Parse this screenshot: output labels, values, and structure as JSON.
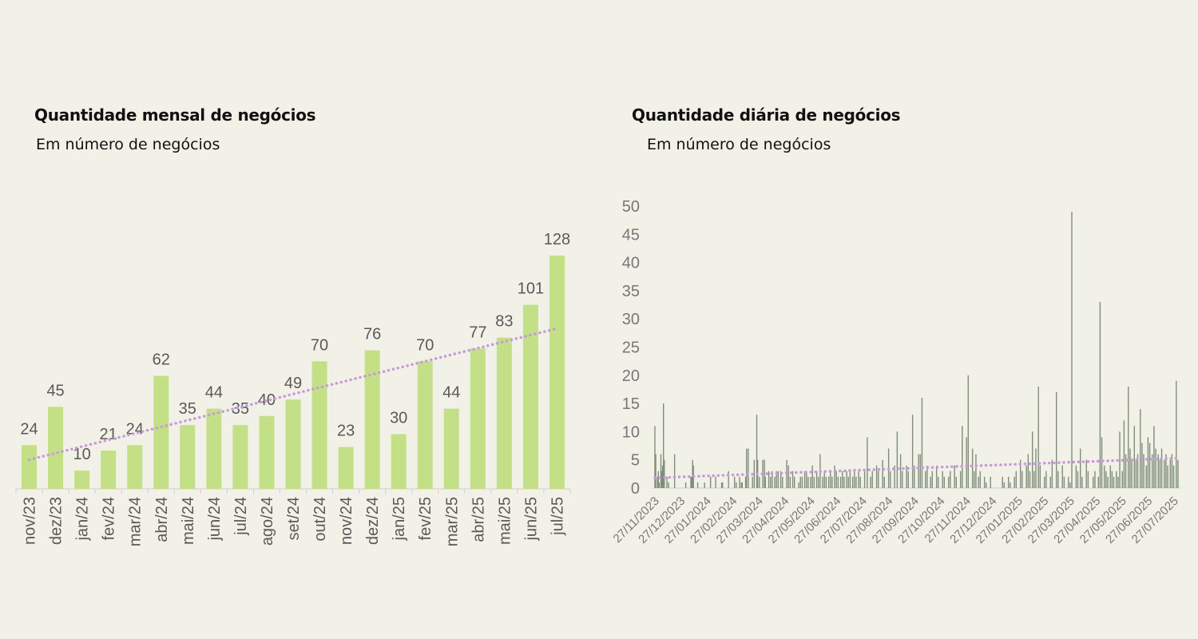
{
  "left_panel": {
    "title": "Quantidade mensal de negócios",
    "subtitle": "Em número de negócios"
  },
  "right_panel": {
    "title": "Quantidade diária de negócios",
    "subtitle": "Em número de negócios"
  },
  "colors": {
    "background": "#f2f1e8",
    "bar_monthly": "#c3e087",
    "bar_daily": "#7f8e7a",
    "trendline": "#c79ad9",
    "text": "#595959"
  },
  "chart_data": [
    {
      "type": "bar",
      "title": "Quantidade mensal de negócios",
      "subtitle": "Em número de negócios",
      "categories": [
        "nov/23",
        "dez/23",
        "jan/24",
        "fev/24",
        "mar/24",
        "abr/24",
        "mai/24",
        "jun/24",
        "jul/24",
        "ago/24",
        "set/24",
        "out/24",
        "nov/24",
        "dez/24",
        "jan/25",
        "fev/25",
        "mar/25",
        "abr/25",
        "mai/25",
        "jun/25",
        "jul/25"
      ],
      "values": [
        24,
        45,
        10,
        21,
        24,
        62,
        35,
        44,
        35,
        40,
        49,
        70,
        23,
        76,
        30,
        70,
        44,
        77,
        83,
        101,
        128
      ],
      "data_labels": true,
      "trendline": {
        "type": "linear",
        "style": "dotted",
        "start": 16,
        "end": 88
      },
      "ylim": [
        0,
        140
      ],
      "grid": false
    },
    {
      "type": "bar",
      "title": "Quantidade diária de negócios",
      "subtitle": "Em número de negócios",
      "x_start": "2023-11-27",
      "x_end": "2025-07-31",
      "x_tick_labels": [
        "27/11/2023",
        "27/12/2023",
        "27/01/2024",
        "27/02/2024",
        "27/03/2024",
        "27/04/2024",
        "27/05/2024",
        "27/06/2024",
        "27/07/2024",
        "27/08/2024",
        "27/09/2024",
        "27/10/2024",
        "27/11/2024",
        "27/12/2024",
        "27/01/2025",
        "27/02/2025",
        "27/03/2025",
        "27/04/2025",
        "27/05/2025",
        "27/06/2025",
        "27/07/2025"
      ],
      "y_ticks": [
        0,
        5,
        10,
        15,
        20,
        25,
        30,
        35,
        40,
        45,
        50
      ],
      "ylim": [
        0,
        50
      ],
      "grid": false,
      "trendline": {
        "type": "linear",
        "style": "dotted",
        "start": 1.8,
        "end": 5.3
      },
      "series": [
        {
          "points": [
            [
              "2023-11-27",
              11
            ],
            [
              "2023-11-28",
              6
            ],
            [
              "2023-11-30",
              2
            ],
            [
              "2023-12-01",
              3
            ],
            [
              "2023-12-02",
              1
            ],
            [
              "2023-12-04",
              6
            ],
            [
              "2023-12-05",
              3
            ],
            [
              "2023-12-06",
              4
            ],
            [
              "2023-12-07",
              15
            ],
            [
              "2023-12-08",
              5
            ],
            [
              "2023-12-11",
              2
            ],
            [
              "2023-12-13",
              1
            ],
            [
              "2023-12-20",
              6
            ],
            [
              "2024-01-02",
              1
            ],
            [
              "2024-01-08",
              2
            ],
            [
              "2024-01-09",
              2
            ],
            [
              "2024-01-10",
              5
            ],
            [
              "2024-01-11",
              4
            ],
            [
              "2024-01-16",
              1
            ],
            [
              "2024-01-24",
              1
            ],
            [
              "2024-01-31",
              2
            ],
            [
              "2024-02-06",
              2
            ],
            [
              "2024-02-13",
              1
            ],
            [
              "2024-02-14",
              1
            ],
            [
              "2024-02-21",
              3
            ],
            [
              "2024-02-28",
              2
            ],
            [
              "2024-03-01",
              1
            ],
            [
              "2024-03-05",
              2
            ],
            [
              "2024-03-07",
              1
            ],
            [
              "2024-03-08",
              1
            ],
            [
              "2024-03-12",
              2
            ],
            [
              "2024-03-13",
              7
            ],
            [
              "2024-03-15",
              7
            ],
            [
              "2024-03-20",
              2
            ],
            [
              "2024-03-22",
              5
            ],
            [
              "2024-03-25",
              13
            ],
            [
              "2024-03-26",
              5
            ],
            [
              "2024-03-28",
              2
            ],
            [
              "2024-04-01",
              5
            ],
            [
              "2024-04-03",
              5
            ],
            [
              "2024-04-04",
              2
            ],
            [
              "2024-04-08",
              3
            ],
            [
              "2024-04-10",
              2
            ],
            [
              "2024-04-12",
              3
            ],
            [
              "2024-04-15",
              2
            ],
            [
              "2024-04-17",
              3
            ],
            [
              "2024-04-19",
              3
            ],
            [
              "2024-04-22",
              3
            ],
            [
              "2024-04-24",
              2
            ],
            [
              "2024-04-29",
              5
            ],
            [
              "2024-05-01",
              4
            ],
            [
              "2024-05-03",
              2
            ],
            [
              "2024-05-06",
              3
            ],
            [
              "2024-05-08",
              2
            ],
            [
              "2024-05-13",
              1
            ],
            [
              "2024-05-15",
              2
            ],
            [
              "2024-05-17",
              2
            ],
            [
              "2024-05-20",
              3
            ],
            [
              "2024-05-22",
              3
            ],
            [
              "2024-05-24",
              2
            ],
            [
              "2024-05-27",
              2
            ],
            [
              "2024-05-29",
              4
            ],
            [
              "2024-05-31",
              2
            ],
            [
              "2024-06-03",
              3
            ],
            [
              "2024-06-05",
              2
            ],
            [
              "2024-06-07",
              6
            ],
            [
              "2024-06-10",
              2
            ],
            [
              "2024-06-12",
              3
            ],
            [
              "2024-06-14",
              2
            ],
            [
              "2024-06-17",
              2
            ],
            [
              "2024-06-19",
              3
            ],
            [
              "2024-06-21",
              2
            ],
            [
              "2024-06-24",
              4
            ],
            [
              "2024-06-26",
              3
            ],
            [
              "2024-06-28",
              2
            ],
            [
              "2024-07-01",
              2
            ],
            [
              "2024-07-03",
              3
            ],
            [
              "2024-07-05",
              2
            ],
            [
              "2024-07-08",
              3
            ],
            [
              "2024-07-10",
              2
            ],
            [
              "2024-07-12",
              3
            ],
            [
              "2024-07-15",
              2
            ],
            [
              "2024-07-17",
              3
            ],
            [
              "2024-07-19",
              2
            ],
            [
              "2024-07-22",
              3
            ],
            [
              "2024-07-24",
              2
            ],
            [
              "2024-07-29",
              3
            ],
            [
              "2024-08-01",
              9
            ],
            [
              "2024-08-05",
              2
            ],
            [
              "2024-08-07",
              3
            ],
            [
              "2024-08-12",
              4
            ],
            [
              "2024-08-14",
              3
            ],
            [
              "2024-08-19",
              5
            ],
            [
              "2024-08-21",
              2
            ],
            [
              "2024-08-26",
              7
            ],
            [
              "2024-08-28",
              3
            ],
            [
              "2024-09-02",
              4
            ],
            [
              "2024-09-05",
              10
            ],
            [
              "2024-09-09",
              6
            ],
            [
              "2024-09-11",
              3
            ],
            [
              "2024-09-16",
              4
            ],
            [
              "2024-09-18",
              3
            ],
            [
              "2024-09-23",
              13
            ],
            [
              "2024-09-25",
              4
            ],
            [
              "2024-09-30",
              6
            ],
            [
              "2024-10-02",
              6
            ],
            [
              "2024-10-04",
              16
            ],
            [
              "2024-10-08",
              3
            ],
            [
              "2024-10-10",
              4
            ],
            [
              "2024-10-14",
              2
            ],
            [
              "2024-10-16",
              3
            ],
            [
              "2024-10-21",
              4
            ],
            [
              "2024-10-23",
              2
            ],
            [
              "2024-10-28",
              3
            ],
            [
              "2024-10-30",
              2
            ],
            [
              "2024-11-04",
              2
            ],
            [
              "2024-11-06",
              3
            ],
            [
              "2024-11-11",
              4
            ],
            [
              "2024-11-13",
              2
            ],
            [
              "2024-11-18",
              3
            ],
            [
              "2024-11-20",
              11
            ],
            [
              "2024-11-25",
              9
            ],
            [
              "2024-11-27",
              20
            ],
            [
              "2024-12-02",
              7
            ],
            [
              "2024-12-04",
              3
            ],
            [
              "2024-12-06",
              6
            ],
            [
              "2024-12-09",
              2
            ],
            [
              "2024-12-11",
              3
            ],
            [
              "2024-12-16",
              2
            ],
            [
              "2024-12-18",
              1
            ],
            [
              "2024-12-23",
              2
            ],
            [
              "2025-01-06",
              2
            ],
            [
              "2025-01-08",
              1
            ],
            [
              "2025-01-13",
              2
            ],
            [
              "2025-01-15",
              1
            ],
            [
              "2025-01-20",
              2
            ],
            [
              "2025-01-22",
              3
            ],
            [
              "2025-01-27",
              5
            ],
            [
              "2025-01-29",
              3
            ],
            [
              "2025-02-03",
              4
            ],
            [
              "2025-02-05",
              6
            ],
            [
              "2025-02-07",
              3
            ],
            [
              "2025-02-10",
              10
            ],
            [
              "2025-02-12",
              3
            ],
            [
              "2025-02-14",
              7
            ],
            [
              "2025-02-17",
              18
            ],
            [
              "2025-02-19",
              4
            ],
            [
              "2025-02-24",
              2
            ],
            [
              "2025-02-26",
              3
            ],
            [
              "2025-03-03",
              2
            ],
            [
              "2025-03-05",
              5
            ],
            [
              "2025-03-10",
              17
            ],
            [
              "2025-03-12",
              3
            ],
            [
              "2025-03-17",
              4
            ],
            [
              "2025-03-19",
              2
            ],
            [
              "2025-03-24",
              2
            ],
            [
              "2025-03-26",
              1
            ],
            [
              "2025-03-28",
              49
            ],
            [
              "2025-04-02",
              4
            ],
            [
              "2025-04-04",
              3
            ],
            [
              "2025-04-07",
              7
            ],
            [
              "2025-04-09",
              2
            ],
            [
              "2025-04-14",
              5
            ],
            [
              "2025-04-16",
              3
            ],
            [
              "2025-04-22",
              2
            ],
            [
              "2025-04-24",
              3
            ],
            [
              "2025-04-28",
              2
            ],
            [
              "2025-04-30",
              33
            ],
            [
              "2025-05-02",
              9
            ],
            [
              "2025-05-05",
              4
            ],
            [
              "2025-05-07",
              3
            ],
            [
              "2025-05-09",
              2
            ],
            [
              "2025-05-12",
              4
            ],
            [
              "2025-05-14",
              3
            ],
            [
              "2025-05-16",
              2
            ],
            [
              "2025-05-19",
              3
            ],
            [
              "2025-05-21",
              2
            ],
            [
              "2025-05-23",
              10
            ],
            [
              "2025-05-26",
              3
            ],
            [
              "2025-05-28",
              12
            ],
            [
              "2025-05-30",
              6
            ],
            [
              "2025-06-02",
              18
            ],
            [
              "2025-06-04",
              7
            ],
            [
              "2025-06-06",
              5
            ],
            [
              "2025-06-09",
              11
            ],
            [
              "2025-06-11",
              5
            ],
            [
              "2025-06-13",
              6
            ],
            [
              "2025-06-16",
              14
            ],
            [
              "2025-06-18",
              8
            ],
            [
              "2025-06-20",
              6
            ],
            [
              "2025-06-23",
              4
            ],
            [
              "2025-06-25",
              9
            ],
            [
              "2025-06-27",
              8
            ],
            [
              "2025-06-30",
              6
            ],
            [
              "2025-07-02",
              11
            ],
            [
              "2025-07-04",
              7
            ],
            [
              "2025-07-07",
              6
            ],
            [
              "2025-07-09",
              5
            ],
            [
              "2025-07-11",
              7
            ],
            [
              "2025-07-14",
              5
            ],
            [
              "2025-07-16",
              6
            ],
            [
              "2025-07-18",
              4
            ],
            [
              "2025-07-21",
              5
            ],
            [
              "2025-07-23",
              6
            ],
            [
              "2025-07-25",
              4
            ],
            [
              "2025-07-28",
              19
            ],
            [
              "2025-07-30",
              5
            ]
          ]
        }
      ]
    }
  ]
}
